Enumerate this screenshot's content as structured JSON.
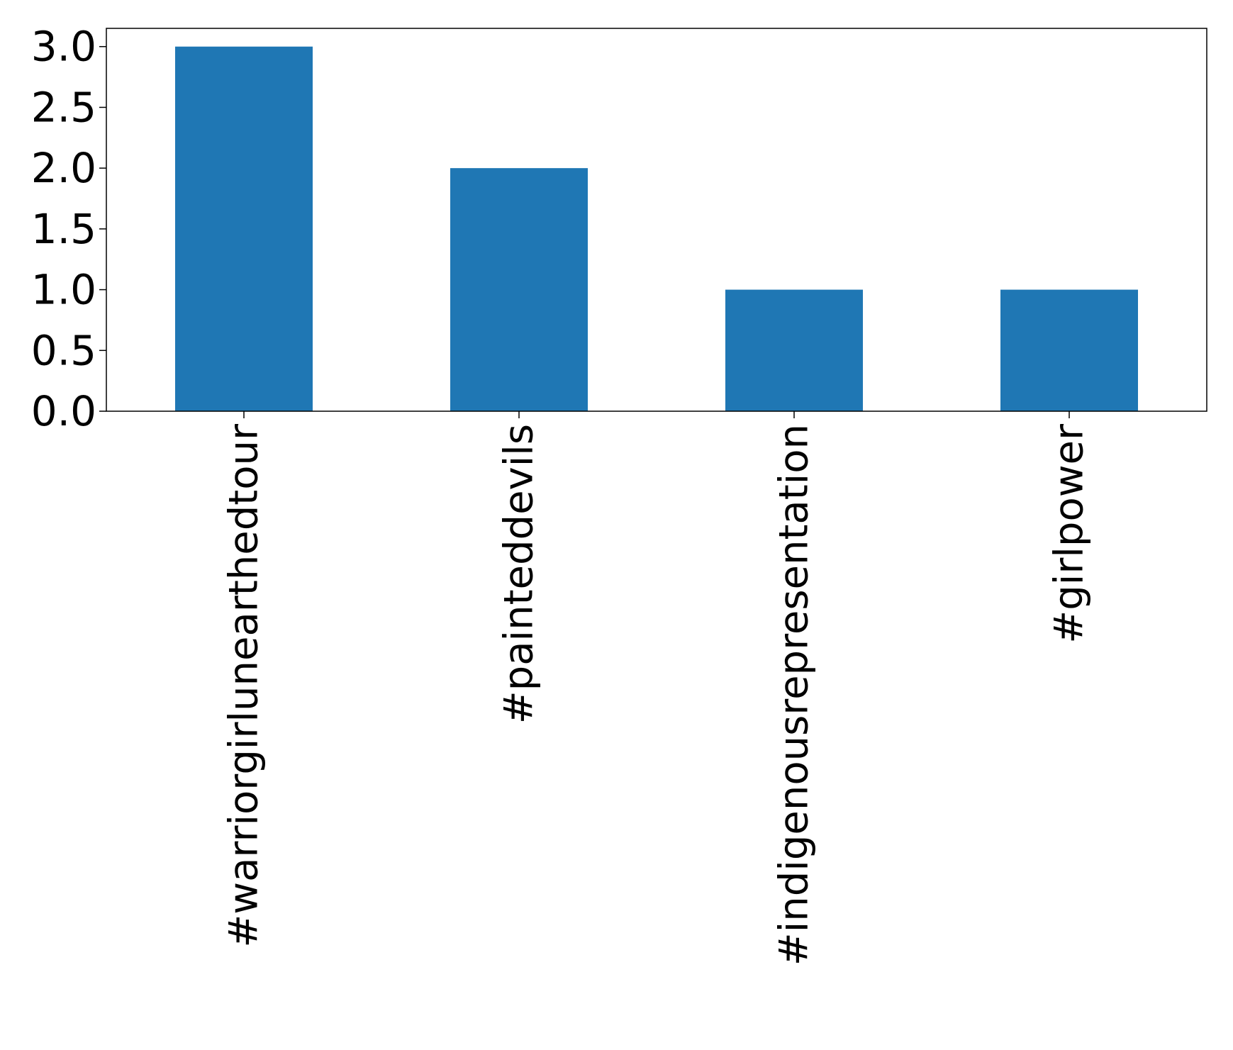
{
  "chart_data": {
    "type": "bar",
    "categories": [
      "#warriorgirlunearthedtour",
      "#painteddevils",
      "#indigenousrepresentation",
      "#girlpower"
    ],
    "values": [
      3,
      2,
      1,
      1
    ],
    "title": "",
    "xlabel": "",
    "ylabel": "",
    "ylim": [
      0,
      3.15
    ],
    "yticks": [
      "0.0",
      "0.5",
      "1.0",
      "1.5",
      "2.0",
      "2.5",
      "3.0"
    ],
    "grid": false,
    "legend": "none",
    "bar_color": "#1f77b4"
  }
}
